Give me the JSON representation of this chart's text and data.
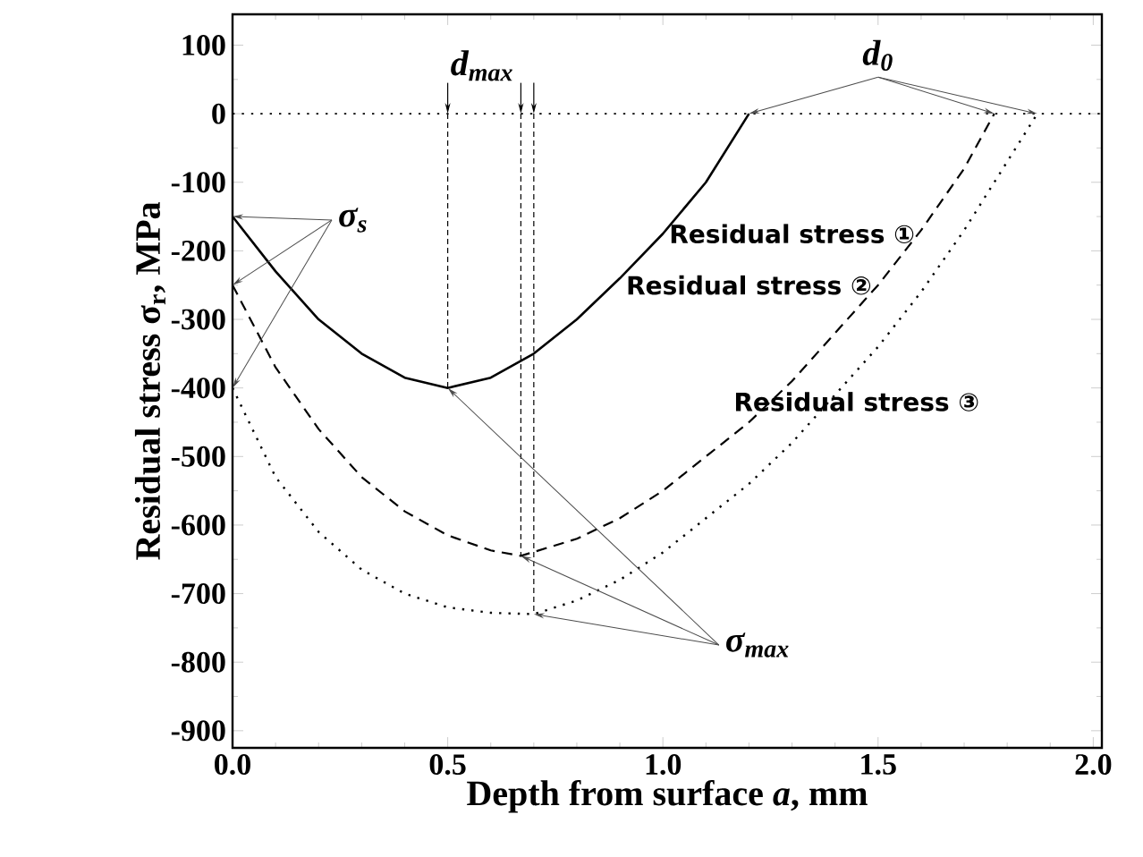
{
  "chart_data": {
    "type": "line",
    "xlabel": "Depth from surface *a*, mm",
    "ylabel": "Residual stress σ$_{r}$, MPa",
    "xlim": [
      0,
      2.02
    ],
    "ylim": [
      -925,
      145
    ],
    "xticks": [
      {
        "value": 0,
        "label": "0.0"
      },
      {
        "value": 0.5,
        "label": "0.5"
      },
      {
        "value": 1,
        "label": "1.0"
      },
      {
        "value": 1.5,
        "label": "1.5"
      },
      {
        "value": 2,
        "label": "2.0"
      }
    ],
    "yticks": [
      -900,
      -800,
      -700,
      -600,
      -500,
      -400,
      -300,
      -200,
      -100,
      0,
      100
    ],
    "grid": false,
    "marker": "none",
    "ref_lines": [
      {
        "axis": "y",
        "value": 0,
        "line_style": "dotted",
        "color": "#000000"
      }
    ],
    "annotations": [
      {
        "text": "d$_{max}$",
        "x": 0.5,
        "y": 0
      },
      {
        "text": "d$_{0}$",
        "x": 1.2,
        "y": 0
      },
      {
        "text": "σ$_{s}$",
        "x": 0,
        "y": -150
      },
      {
        "text": "σ$_{max}$",
        "x": 0.5,
        "y": -400
      }
    ],
    "series": [
      {
        "name": "Residual stress ①",
        "color": "#000000",
        "line_style": "solid",
        "x": [
          0,
          0.1,
          0.2,
          0.3,
          0.4,
          0.5,
          0.6,
          0.7,
          0.8,
          0.9,
          1.0,
          1.1,
          1.2
        ],
        "values": [
          -150,
          -230,
          -300,
          -350,
          -385,
          -400,
          -385,
          -350,
          -300,
          -240,
          -175,
          -100,
          0
        ]
      },
      {
        "name": "Residual stress ②",
        "color": "#000000",
        "line_style": "dashed",
        "x": [
          0,
          0.1,
          0.2,
          0.3,
          0.4,
          0.5,
          0.6,
          0.67,
          0.8,
          0.9,
          1.0,
          1.1,
          1.2,
          1.3,
          1.4,
          1.5,
          1.6,
          1.7,
          1.77
        ],
        "values": [
          -250,
          -370,
          -460,
          -530,
          -580,
          -615,
          -637,
          -645,
          -620,
          -590,
          -550,
          -500,
          -450,
          -390,
          -320,
          -250,
          -170,
          -80,
          0
        ]
      },
      {
        "name": "Residual stress ③",
        "color": "#000000",
        "line_style": "dotted",
        "x": [
          0,
          0.1,
          0.2,
          0.3,
          0.4,
          0.5,
          0.6,
          0.7,
          0.8,
          0.9,
          1.0,
          1.1,
          1.2,
          1.3,
          1.4,
          1.5,
          1.6,
          1.7,
          1.8,
          1.87
        ],
        "values": [
          -400,
          -530,
          -610,
          -665,
          -700,
          -720,
          -728,
          -730,
          -710,
          -680,
          -640,
          -590,
          -540,
          -480,
          -410,
          -340,
          -260,
          -170,
          -70,
          0
        ]
      }
    ]
  }
}
